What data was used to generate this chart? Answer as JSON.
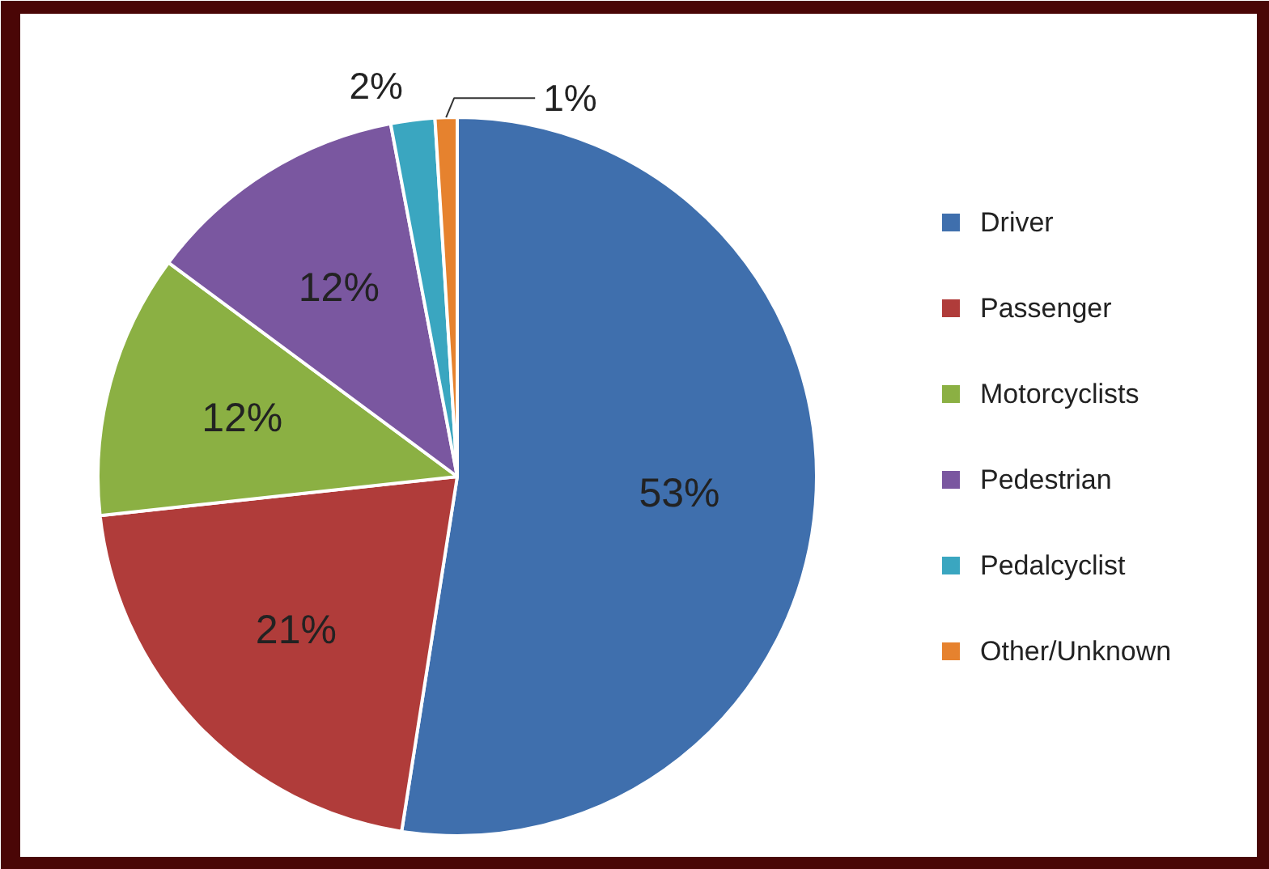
{
  "chart_data": {
    "type": "pie",
    "categories": [
      "Driver",
      "Passenger",
      "Motorcyclists",
      "Pedestrian",
      "Pedalcyclist",
      "Other/Unknown"
    ],
    "values": [
      53,
      21,
      12,
      12,
      2,
      1
    ],
    "colors": [
      "#3f6fad",
      "#b03c3a",
      "#8bb043",
      "#7a57a0",
      "#3aa6c0",
      "#e6822e"
    ],
    "value_labels": [
      "53%",
      "21%",
      "12%",
      "12%",
      "2%",
      "1%"
    ],
    "legend": "right"
  }
}
